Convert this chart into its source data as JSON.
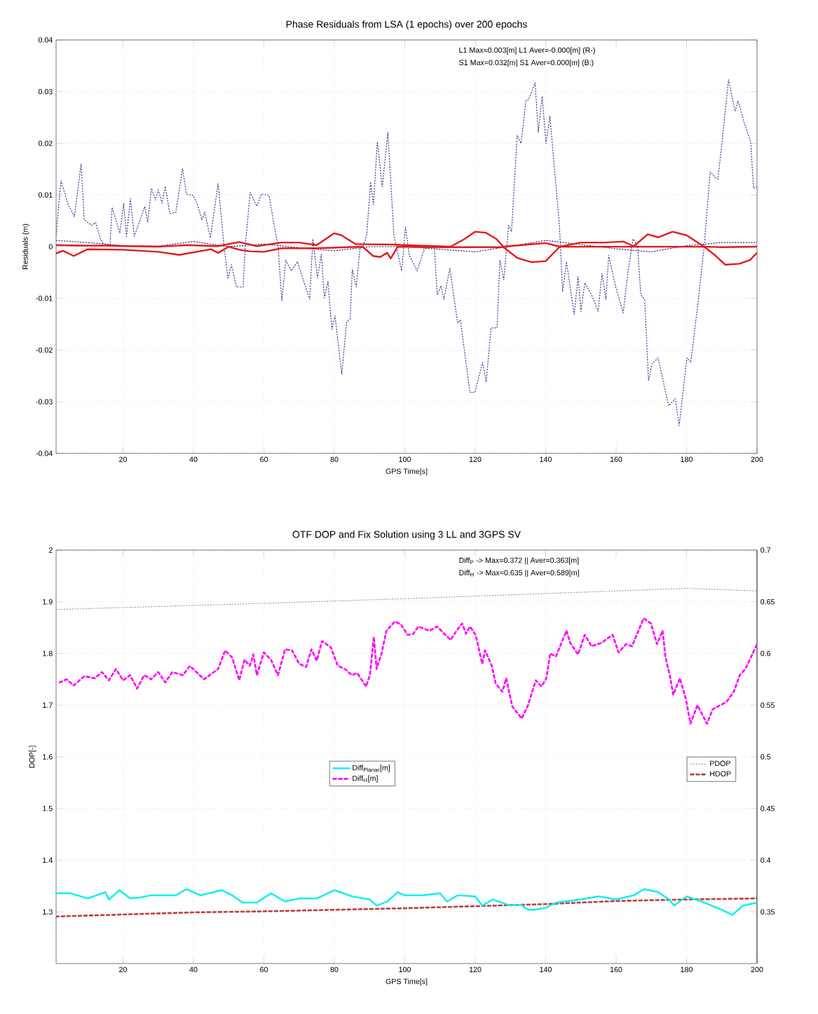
{
  "chart_data": [
    {
      "type": "line",
      "title": "Phase Residuals from LSA (1 epochs) over 200 epochs",
      "xlabel": "GPS Time[s]",
      "ylabel": "Residuals (m)",
      "annotations": [
        "L1 Max=0.003[m] L1 Aver=-0.000[m] (R-)",
        "S1 Max=0.032[m] S1 Aver=0.000[m] (B:)"
      ],
      "xlim": [
        1,
        200
      ],
      "ylim": [
        -0.04,
        0.04
      ],
      "xticks": [
        20,
        40,
        60,
        80,
        100,
        120,
        140,
        160,
        180,
        200
      ],
      "yticks": [
        -0.04,
        -0.03,
        -0.02,
        -0.01,
        0,
        0.01,
        0.02,
        0.03,
        0.04
      ],
      "grid": true,
      "series": [
        {
          "color": "#3a3aa0",
          "line_style": "dotted",
          "x": [
            1,
            2.4,
            4.3,
            6.2,
            8.1,
            9,
            11.1,
            12.2,
            13.6,
            14.4,
            16.3,
            16.9,
            19.1,
            20.2,
            21,
            22.1,
            23.2,
            26.2,
            27,
            28.1,
            29.2,
            30,
            31.1,
            32,
            33.3,
            35,
            36.9,
            38,
            39.9,
            41,
            42.4,
            43.2,
            44.8,
            47,
            48.7,
            49.8,
            50.8,
            52.2,
            54.1,
            54.7,
            56.1,
            58,
            59.3,
            61.5,
            62.9,
            64,
            65.1,
            66.2,
            67.8,
            69.5,
            73,
            73.9,
            75.2,
            76.3,
            77.2,
            78.2,
            79.3,
            80.2,
            82.1,
            83.5,
            84.5,
            85.1,
            86.2,
            87.3,
            88.1,
            89.2,
            90.3,
            91.1,
            92.2,
            93.6,
            95.2,
            96.9,
            99.1,
            100.2,
            101.3,
            103.5,
            105.6,
            108.4,
            109.2,
            110.3,
            111.1,
            112.8,
            115,
            115.8,
            118.5,
            119.9,
            122.1,
            123.1,
            124.5,
            126.2,
            127,
            128.1,
            129.5,
            130.3,
            131.9,
            133,
            134.4,
            135.2,
            137,
            137.9,
            139,
            140.1,
            141.2,
            143.9,
            144.8,
            145.9,
            148.1,
            149.2,
            150,
            151.1,
            153,
            154.9,
            156,
            157.1,
            157.9,
            159.8,
            162,
            163.4,
            164.8,
            166.1,
            167,
            168.1,
            169.2,
            170.2,
            171.9,
            174.9,
            176.8,
            177.9,
            180.1,
            181.2,
            183.4,
            185,
            186.7,
            188.1,
            188.9,
            190,
            191.9,
            193.8,
            194.6,
            195.5,
            196.3,
            198.2,
            199,
            200
          ],
          "values": [
            0.0023,
            0.0128,
            0.0084,
            0.0058,
            0.016,
            0.0052,
            0.0041,
            0.0047,
            0.0015,
            0.0006,
            0.0003,
            0.0076,
            0.0026,
            0.0084,
            0.002,
            0.0093,
            0.002,
            0.0078,
            0.0047,
            0.0113,
            0.009,
            0.011,
            0.0084,
            0.0117,
            0.0064,
            0.0067,
            0.0151,
            0.0102,
            0.0099,
            0.0084,
            0.0052,
            0.0067,
            0.0017,
            0.0122,
            0,
            -0.0061,
            -0.0035,
            -0.0078,
            -0.0078,
            0,
            0.0105,
            0.0078,
            0.0102,
            0.0099,
            0.0041,
            0.0003,
            -0.0105,
            -0.0026,
            -0.0047,
            -0.0029,
            -0.0102,
            0.0015,
            -0.0061,
            -0.0015,
            -0.0099,
            -0.0067,
            -0.016,
            -0.0134,
            -0.0247,
            -0.0145,
            -0.014,
            -0.0044,
            -0.0078,
            -0.0003,
            0,
            0.0023,
            0.0125,
            0.0081,
            0.0203,
            0.0116,
            0.0221,
            0.0023,
            -0.0047,
            0.0038,
            -0.0017,
            -0.0047,
            -0.0003,
            0,
            -0.0093,
            -0.0076,
            -0.0102,
            -0.0041,
            -0.0148,
            -0.0142,
            -0.0282,
            -0.0282,
            -0.0224,
            -0.0262,
            -0.0157,
            -0.0157,
            -0.0026,
            -0.0064,
            0.0041,
            0.0029,
            0.0215,
            0.02,
            0.0282,
            0.0285,
            0.0317,
            0.0221,
            0.0291,
            0.02,
            0.0253,
            0.0041,
            -0.0087,
            -0.0029,
            -0.0131,
            -0.0058,
            -0.0125,
            -0.007,
            -0.0093,
            -0.0125,
            -0.0052,
            -0.0102,
            -0.0017,
            -0.0076,
            -0.0128,
            -0.0047,
            0.0015,
            0,
            -0.0093,
            -0.0102,
            -0.0259,
            -0.0227,
            -0.0215,
            -0.0308,
            -0.0294,
            -0.0346,
            -0.0215,
            -0.0224,
            -0.0099,
            0,
            0.0145,
            0.0134,
            0.0131,
            0.0198,
            0.0323,
            0.0262,
            0.0282,
            0.0262,
            0.0241,
            0.0203,
            0.0113,
            0.0116
          ]
        },
        {
          "color": "#1c1c7a",
          "line_style": "dotted",
          "x": [
            1,
            10,
            20,
            30,
            40,
            50,
            60,
            70,
            80,
            90,
            100,
            120,
            140,
            160,
            170,
            180,
            190,
            200
          ],
          "values": [
            0.0012,
            0.0008,
            0.0002,
            0.0001,
            0.001,
            0,
            0.0005,
            -0.0002,
            -0.0008,
            0,
            0,
            -0.001,
            0.0012,
            -0.0004,
            -0.001,
            0.0002,
            0.0008,
            0.0008
          ]
        },
        {
          "color": "#e41a1c",
          "line_style": "solid",
          "x": [
            1,
            7,
            15,
            22,
            30,
            38,
            47,
            53,
            58,
            65,
            70,
            75,
            80,
            82,
            86,
            97,
            100,
            113,
            117,
            120,
            123,
            126,
            128,
            140,
            144,
            150,
            157,
            162,
            165,
            169,
            172,
            176,
            180,
            185,
            190,
            200
          ],
          "values": [
            0.0003,
            0.0002,
            0.0002,
            0.0001,
            0,
            0.0003,
            0.0001,
            0.0009,
            0.0001,
            0.0008,
            0.0008,
            0.0003,
            0.0026,
            0.0022,
            0.0005,
            0.0004,
            0.0003,
            0,
            0.0015,
            0.0029,
            0.0027,
            0.0015,
            0,
            0.0007,
            0,
            0.0008,
            0.0008,
            0.001,
            0.0001,
            0.0024,
            0.0018,
            0.0029,
            0.0022,
            0,
            -0.0001,
            0
          ]
        },
        {
          "color": "#e41a1c",
          "line_style": "solid",
          "x": [
            1,
            3,
            6,
            10,
            20,
            30,
            36,
            45,
            47,
            50,
            53,
            56,
            60,
            65,
            75,
            88,
            91,
            93,
            95,
            96,
            98,
            110,
            128,
            132,
            136,
            140,
            144,
            165,
            185,
            188,
            191,
            195,
            198,
            200
          ],
          "values": [
            -0.0013,
            -0.0008,
            -0.0018,
            -0.0005,
            -0.0006,
            -0.001,
            -0.0016,
            -0.0005,
            -0.0012,
            0,
            -0.0006,
            -0.0009,
            -0.001,
            -0.0003,
            -0.0003,
            0,
            -0.0018,
            -0.002,
            -0.0012,
            -0.0023,
            0,
            -0.0001,
            -0.0001,
            -0.0022,
            -0.003,
            -0.0028,
            0,
            0,
            0,
            -0.0016,
            -0.0035,
            -0.0033,
            -0.0026,
            -0.0012
          ]
        }
      ]
    },
    {
      "type": "line",
      "title": "OTF DOP and Fix Solution using 3 LL and 3GPS SV",
      "xlabel": "GPS Time[s]",
      "ylabel": "DOP[-]",
      "annotations": [
        "Diff$_{P}$ -> Max=0.372 || Aver=0.363[m]",
        "Diff$_{H}$ -> Max=0.635 || Aver=0.589[m]"
      ],
      "xlim": [
        1,
        200
      ],
      "ylim": [
        1.2,
        2
      ],
      "y2lim": [
        0.3,
        0.7
      ],
      "xticks": [
        20,
        40,
        60,
        80,
        100,
        120,
        140,
        160,
        180,
        200
      ],
      "yticks": [
        1.3,
        1.4,
        1.5,
        1.6,
        1.7,
        1.8,
        1.9,
        2
      ],
      "y2ticks": [
        0.35,
        0.4,
        0.45,
        0.5,
        0.55,
        0.6,
        0.65,
        0.7
      ],
      "grid": true,
      "legend": "right",
      "series": [
        {
          "name": "PDOP",
          "color": "#a0a0a0",
          "line_style": "dotted",
          "x": [
            1,
            40,
            60,
            100,
            180,
            200
          ],
          "values": [
            1.885,
            1.893,
            1.897,
            1.906,
            1.926,
            1.921
          ]
        },
        {
          "name": "HDOP",
          "color": "#c04040",
          "line_style": "dashed",
          "x": [
            1,
            40,
            60,
            100,
            140,
            160,
            180,
            200
          ],
          "values": [
            1.291,
            1.299,
            1.301,
            1.307,
            1.315,
            1.321,
            1.324,
            1.326
          ]
        },
        {
          "name": "Diff$_{Planar}$[m]",
          "color": "#00f0f0",
          "line_style": "solid",
          "axis": "y2",
          "x": [
            1,
            5,
            10,
            15,
            16,
            19,
            22,
            25,
            28,
            32,
            35,
            38,
            42,
            48,
            51,
            54,
            58,
            62,
            66,
            70,
            75,
            80,
            85,
            90,
            92,
            95,
            98,
            100,
            105,
            110,
            112,
            115,
            120,
            122,
            125,
            130,
            133,
            135,
            137,
            140,
            143,
            150,
            155,
            160,
            165,
            168,
            172,
            175,
            176.5,
            180,
            185,
            190,
            193,
            196,
            200
          ],
          "values": [
            0.368,
            0.368,
            0.363,
            0.369,
            0.362,
            0.371,
            0.363,
            0.364,
            0.366,
            0.366,
            0.366,
            0.372,
            0.366,
            0.371,
            0.366,
            0.359,
            0.359,
            0.368,
            0.36,
            0.363,
            0.363,
            0.371,
            0.365,
            0.362,
            0.356,
            0.36,
            0.369,
            0.366,
            0.366,
            0.368,
            0.36,
            0.366,
            0.365,
            0.356,
            0.362,
            0.356,
            0.357,
            0.352,
            0.352,
            0.354,
            0.359,
            0.362,
            0.365,
            0.362,
            0.366,
            0.372,
            0.369,
            0.362,
            0.356,
            0.365,
            0.359,
            0.352,
            0.347,
            0.356,
            0.359
          ]
        },
        {
          "name": "Diff$_{H}$[m]",
          "color": "#ff00ff",
          "line_style": "dashed",
          "axis": "y2",
          "x": [
            2,
            4,
            6,
            9,
            12,
            14,
            16,
            18,
            20,
            22,
            24,
            26,
            28,
            30,
            32,
            34,
            37,
            39,
            43,
            47,
            49,
            51,
            53,
            54.5,
            56,
            57,
            58,
            60,
            62,
            64,
            66,
            68,
            70,
            72,
            73.5,
            75,
            76.5,
            79,
            81,
            83,
            85,
            86.5,
            89,
            90.1,
            91.2,
            92,
            93.4,
            94.8,
            97.2,
            98.9,
            100.8,
            102.4,
            103.8,
            107,
            109.2,
            113,
            114.7,
            116.3,
            117.4,
            118.5,
            120.1,
            122,
            122.8,
            124.7,
            125.8,
            127.7,
            128.8,
            130.5,
            133.2,
            135,
            137.2,
            138.8,
            140.2,
            141.3,
            142.9,
            145.9,
            147,
            149.2,
            151.1,
            153,
            155.7,
            159,
            160.7,
            162.8,
            164.5,
            167.8,
            169.9,
            171.6,
            173.2,
            174,
            175.4,
            176.2,
            178.1,
            179.8,
            181.1,
            183.1,
            185.8,
            187.4,
            191.3,
            193.4,
            195.1,
            196.7,
            200
          ],
          "values": [
            0.572,
            0.575,
            0.569,
            0.578,
            0.576,
            0.582,
            0.574,
            0.585,
            0.574,
            0.579,
            0.566,
            0.579,
            0.575,
            0.582,
            0.572,
            0.582,
            0.579,
            0.588,
            0.575,
            0.585,
            0.603,
            0.596,
            0.574,
            0.594,
            0.588,
            0.599,
            0.579,
            0.601,
            0.594,
            0.579,
            0.604,
            0.603,
            0.59,
            0.587,
            0.604,
            0.593,
            0.612,
            0.606,
            0.588,
            0.585,
            0.579,
            0.581,
            0.568,
            0.579,
            0.616,
            0.585,
            0.6,
            0.622,
            0.631,
            0.628,
            0.618,
            0.619,
            0.626,
            0.622,
            0.626,
            0.613,
            0.622,
            0.629,
            0.619,
            0.626,
            0.618,
            0.59,
            0.603,
            0.588,
            0.571,
            0.563,
            0.576,
            0.549,
            0.537,
            0.55,
            0.574,
            0.568,
            0.576,
            0.6,
            0.597,
            0.622,
            0.61,
            0.599,
            0.618,
            0.607,
            0.61,
            0.618,
            0.601,
            0.609,
            0.607,
            0.634,
            0.629,
            0.609,
            0.622,
            0.597,
            0.576,
            0.56,
            0.576,
            0.556,
            0.532,
            0.55,
            0.532,
            0.546,
            0.553,
            0.563,
            0.579,
            0.585,
            0.609
          ]
        }
      ]
    }
  ]
}
